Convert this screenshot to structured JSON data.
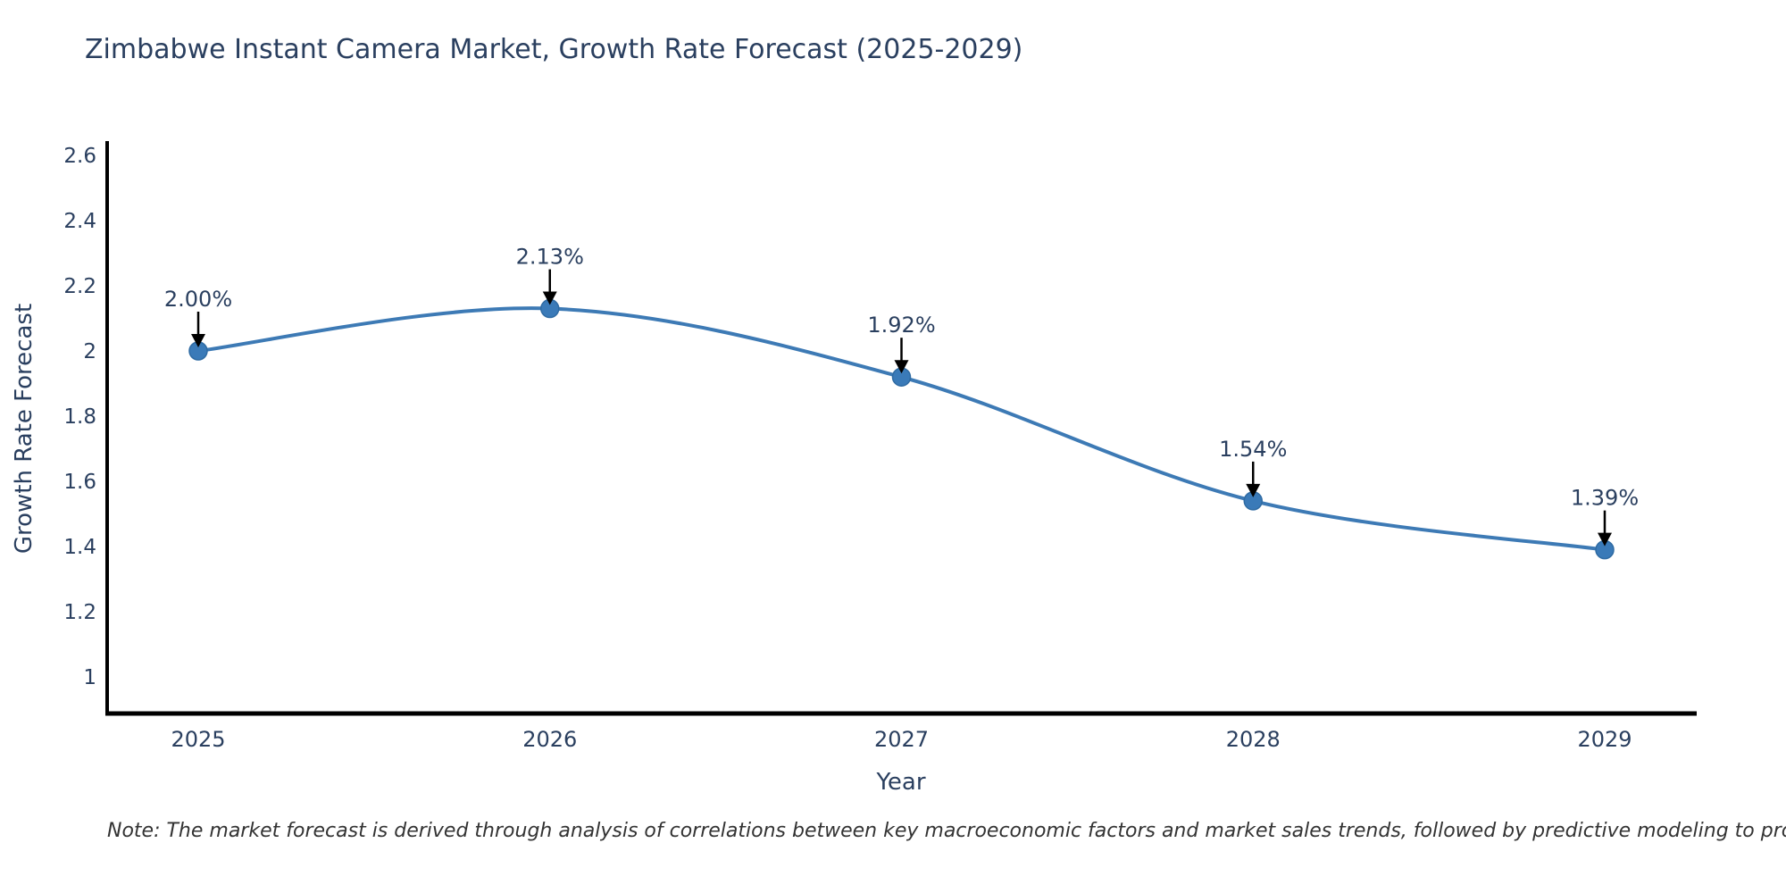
{
  "title": "Zimbabwe Instant Camera Market, Growth Rate Forecast (2025-2029)",
  "note": "Note: The market forecast is derived through analysis of correlations between key macroeconomic factors and market sales trends, followed by predictive modeling to project future sales",
  "chart_data": {
    "type": "line",
    "title": "Zimbabwe Instant Camera Market, Growth Rate Forecast (2025-2029)",
    "xlabel": "Year",
    "ylabel": "Growth Rate Forecast",
    "x": [
      2025,
      2026,
      2027,
      2028,
      2029
    ],
    "values": [
      2.0,
      2.13,
      1.92,
      1.54,
      1.39
    ],
    "point_labels": [
      "2.00%",
      "2.13%",
      "1.92%",
      "1.54%",
      "1.39%"
    ],
    "xtick_labels": [
      "2025",
      "2026",
      "2027",
      "2028",
      "2029"
    ],
    "yticks": [
      2.6,
      2.4,
      2.2,
      2.0,
      1.8,
      1.6,
      1.4,
      1.2,
      1.0
    ],
    "ytick_labels": [
      "2.6",
      "2.4",
      "2.2",
      "2",
      "1.8",
      "1.6",
      "1.4",
      "1.2",
      "1"
    ],
    "ylim": [
      0.88,
      2.64
    ],
    "line_shape": "spline",
    "grid": false,
    "legend_position": "none",
    "colors": {
      "line": "#3d7ab5",
      "marker_fill": "#3a7ab8",
      "marker_edge": "#2f6ba3",
      "axis_line": "#000000",
      "tick_text": "#2a3f5f",
      "annotation_text": "#2a3f5f",
      "annotation_arrow": "#000000",
      "background": "#ffffff"
    }
  }
}
